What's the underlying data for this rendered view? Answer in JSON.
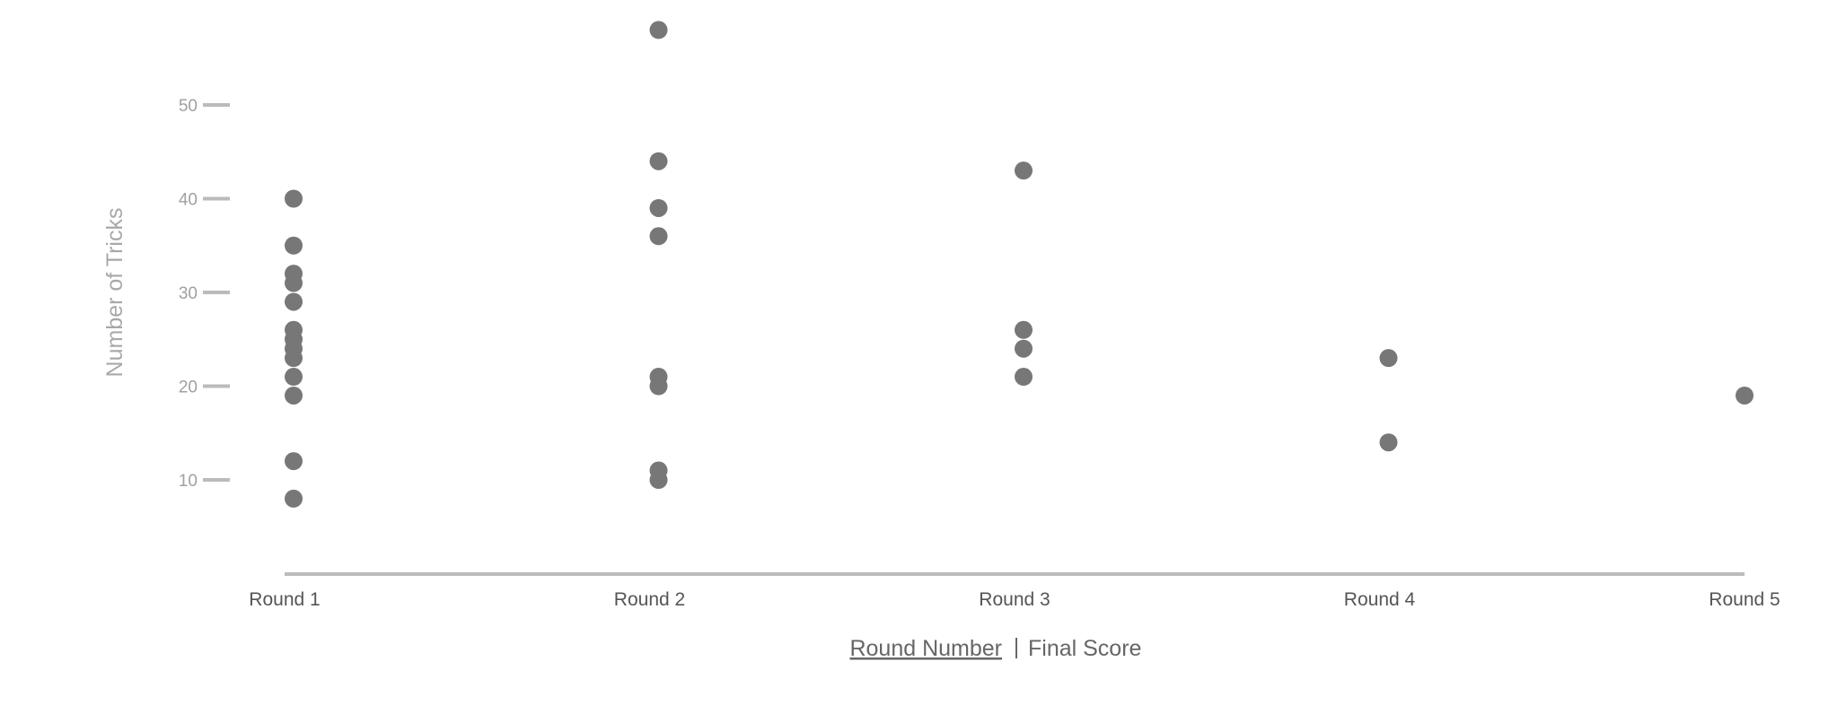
{
  "chart_data": {
    "type": "scatter",
    "title": "",
    "ylabel": "Number of Tricks",
    "xlabel_options": [
      "Round Number",
      "Final Score"
    ],
    "xlabel_active": "Round Number",
    "xlabel_separator": "|",
    "categories": [
      "Round 1",
      "Round 2",
      "Round 3",
      "Round 4",
      "Round 5"
    ],
    "yticks": [
      10,
      20,
      30,
      40,
      50
    ],
    "ylim": [
      0,
      60
    ],
    "grid": false,
    "colors": {
      "point": "#777777",
      "axis": "#bbbbbb"
    },
    "points": [
      {
        "x": "Round 1",
        "y": 40
      },
      {
        "x": "Round 1",
        "y": 35
      },
      {
        "x": "Round 1",
        "y": 32
      },
      {
        "x": "Round 1",
        "y": 31
      },
      {
        "x": "Round 1",
        "y": 29
      },
      {
        "x": "Round 1",
        "y": 26
      },
      {
        "x": "Round 1",
        "y": 25
      },
      {
        "x": "Round 1",
        "y": 24
      },
      {
        "x": "Round 1",
        "y": 23
      },
      {
        "x": "Round 1",
        "y": 21
      },
      {
        "x": "Round 1",
        "y": 19
      },
      {
        "x": "Round 1",
        "y": 12
      },
      {
        "x": "Round 1",
        "y": 8
      },
      {
        "x": "Round 2",
        "y": 58
      },
      {
        "x": "Round 2",
        "y": 44
      },
      {
        "x": "Round 2",
        "y": 39
      },
      {
        "x": "Round 2",
        "y": 36
      },
      {
        "x": "Round 2",
        "y": 21
      },
      {
        "x": "Round 2",
        "y": 20
      },
      {
        "x": "Round 2",
        "y": 11
      },
      {
        "x": "Round 2",
        "y": 10
      },
      {
        "x": "Round 3",
        "y": 43
      },
      {
        "x": "Round 3",
        "y": 26
      },
      {
        "x": "Round 3",
        "y": 24
      },
      {
        "x": "Round 3",
        "y": 21
      },
      {
        "x": "Round 4",
        "y": 23
      },
      {
        "x": "Round 4",
        "y": 14
      },
      {
        "x": "Round 5",
        "y": 19
      }
    ]
  }
}
